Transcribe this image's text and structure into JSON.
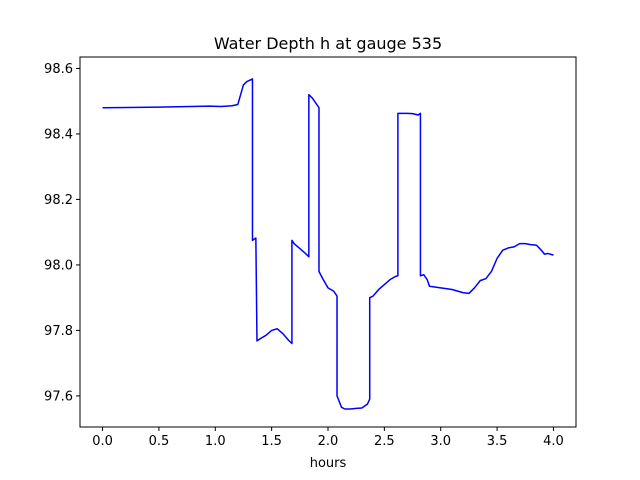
{
  "chart_data": {
    "type": "line",
    "title": "Water Depth h at gauge 535",
    "xlabel": "hours",
    "ylabel": "",
    "xlim": [
      -0.2,
      4.2
    ],
    "ylim": [
      97.505,
      98.635
    ],
    "x_ticks": [
      0.0,
      0.5,
      1.0,
      1.5,
      2.0,
      2.5,
      3.0,
      3.5,
      4.0
    ],
    "x_tick_labels": [
      "0.0",
      "0.5",
      "1.0",
      "1.5",
      "2.0",
      "2.5",
      "3.0",
      "3.5",
      "4.0"
    ],
    "y_ticks": [
      97.6,
      97.8,
      98.0,
      98.2,
      98.4,
      98.6
    ],
    "y_tick_labels": [
      "97.6",
      "97.8",
      "98.0",
      "98.2",
      "98.4",
      "98.6"
    ],
    "grid": false,
    "series": [
      {
        "color": "#0000ff",
        "points": [
          [
            0.0,
            98.48
          ],
          [
            0.5,
            98.482
          ],
          [
            0.95,
            98.485
          ],
          [
            1.05,
            98.484
          ],
          [
            1.15,
            98.486
          ],
          [
            1.2,
            98.49
          ],
          [
            1.25,
            98.55
          ],
          [
            1.28,
            98.56
          ],
          [
            1.33,
            98.568
          ],
          [
            1.33,
            98.075
          ],
          [
            1.35,
            98.08
          ],
          [
            1.36,
            98.082
          ],
          [
            1.37,
            97.768
          ],
          [
            1.4,
            97.775
          ],
          [
            1.45,
            97.785
          ],
          [
            1.5,
            97.8
          ],
          [
            1.55,
            97.805
          ],
          [
            1.6,
            97.79
          ],
          [
            1.65,
            97.77
          ],
          [
            1.68,
            97.76
          ],
          [
            1.68,
            98.075
          ],
          [
            1.7,
            98.065
          ],
          [
            1.75,
            98.05
          ],
          [
            1.8,
            98.035
          ],
          [
            1.83,
            98.025
          ],
          [
            1.83,
            98.52
          ],
          [
            1.86,
            98.51
          ],
          [
            1.9,
            98.49
          ],
          [
            1.92,
            98.48
          ],
          [
            1.92,
            97.98
          ],
          [
            1.95,
            97.96
          ],
          [
            2.0,
            97.93
          ],
          [
            2.05,
            97.92
          ],
          [
            2.08,
            97.905
          ],
          [
            2.08,
            97.6
          ],
          [
            2.12,
            97.565
          ],
          [
            2.15,
            97.56
          ],
          [
            2.2,
            97.56
          ],
          [
            2.25,
            97.562
          ],
          [
            2.3,
            97.563
          ],
          [
            2.35,
            97.575
          ],
          [
            2.37,
            97.59
          ],
          [
            2.37,
            97.9
          ],
          [
            2.4,
            97.905
          ],
          [
            2.45,
            97.925
          ],
          [
            2.5,
            97.94
          ],
          [
            2.55,
            97.955
          ],
          [
            2.6,
            97.965
          ],
          [
            2.62,
            97.967
          ],
          [
            2.62,
            98.463
          ],
          [
            2.7,
            98.463
          ],
          [
            2.75,
            98.462
          ],
          [
            2.8,
            98.458
          ],
          [
            2.82,
            98.463
          ],
          [
            2.82,
            97.967
          ],
          [
            2.85,
            97.97
          ],
          [
            2.88,
            97.955
          ],
          [
            2.9,
            97.935
          ],
          [
            3.0,
            97.93
          ],
          [
            3.1,
            97.925
          ],
          [
            3.15,
            97.92
          ],
          [
            3.2,
            97.915
          ],
          [
            3.25,
            97.913
          ],
          [
            3.3,
            97.93
          ],
          [
            3.35,
            97.952
          ],
          [
            3.4,
            97.958
          ],
          [
            3.45,
            97.98
          ],
          [
            3.5,
            98.02
          ],
          [
            3.55,
            98.045
          ],
          [
            3.6,
            98.052
          ],
          [
            3.65,
            98.055
          ],
          [
            3.7,
            98.065
          ],
          [
            3.75,
            98.065
          ],
          [
            3.8,
            98.062
          ],
          [
            3.85,
            98.06
          ],
          [
            3.9,
            98.042
          ],
          [
            3.92,
            98.033
          ],
          [
            3.95,
            98.035
          ],
          [
            4.0,
            98.03
          ]
        ]
      }
    ]
  }
}
